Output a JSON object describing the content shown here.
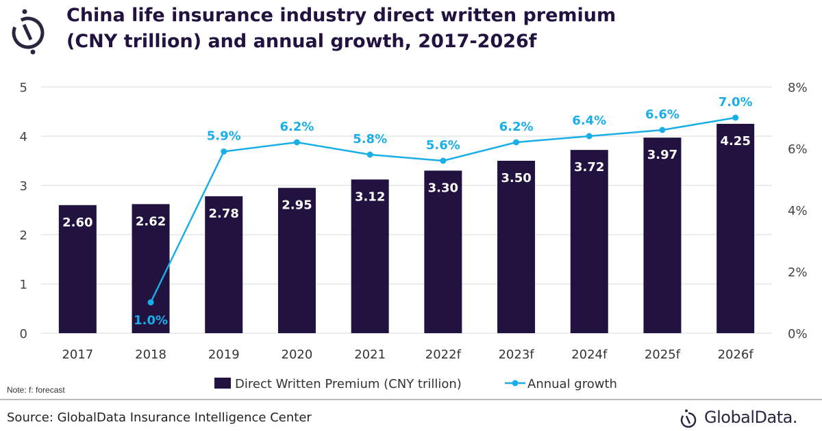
{
  "title_lines": [
    "China life insurance industry direct written premium",
    "(CNY trillion) and annual growth, 2017-2026f"
  ],
  "note": "Note: f: forecast",
  "source": "Source: GlobalData Insurance Intelligence Center",
  "logo_text": "GlobalData.",
  "chart_data": {
    "type": "bar+line",
    "categories": [
      "2017",
      "2018",
      "2019",
      "2020",
      "2021",
      "2022f",
      "2023f",
      "2024f",
      "2025f",
      "2026f"
    ],
    "series": [
      {
        "name": "Direct Written Premium (CNY trillion)",
        "type": "bar",
        "axis": "left",
        "color": "#22123f",
        "values": [
          2.6,
          2.62,
          2.78,
          2.95,
          3.12,
          3.3,
          3.5,
          3.72,
          3.97,
          4.25
        ],
        "labels": [
          "2.60",
          "2.62",
          "2.78",
          "2.95",
          "3.12",
          "3.30",
          "3.50",
          "3.72",
          "3.97",
          "4.25"
        ]
      },
      {
        "name": "Annual growth",
        "type": "line",
        "axis": "right",
        "color": "#1aaee8",
        "values": [
          null,
          1.0,
          5.9,
          6.2,
          5.8,
          5.6,
          6.2,
          6.4,
          6.6,
          7.0
        ],
        "labels": [
          null,
          "1.0%",
          "5.9%",
          "6.2%",
          "5.8%",
          "5.6%",
          "6.2%",
          "6.4%",
          "6.6%",
          "7.0%"
        ]
      }
    ],
    "y_left": {
      "range": [
        0,
        5
      ],
      "ticks": [
        "0",
        "1",
        "2",
        "3",
        "4",
        "5"
      ]
    },
    "y_right": {
      "range": [
        0,
        8
      ],
      "ticks": [
        "0%",
        "2%",
        "4%",
        "6%",
        "8%"
      ]
    },
    "grid": true,
    "legend": "bottom"
  }
}
